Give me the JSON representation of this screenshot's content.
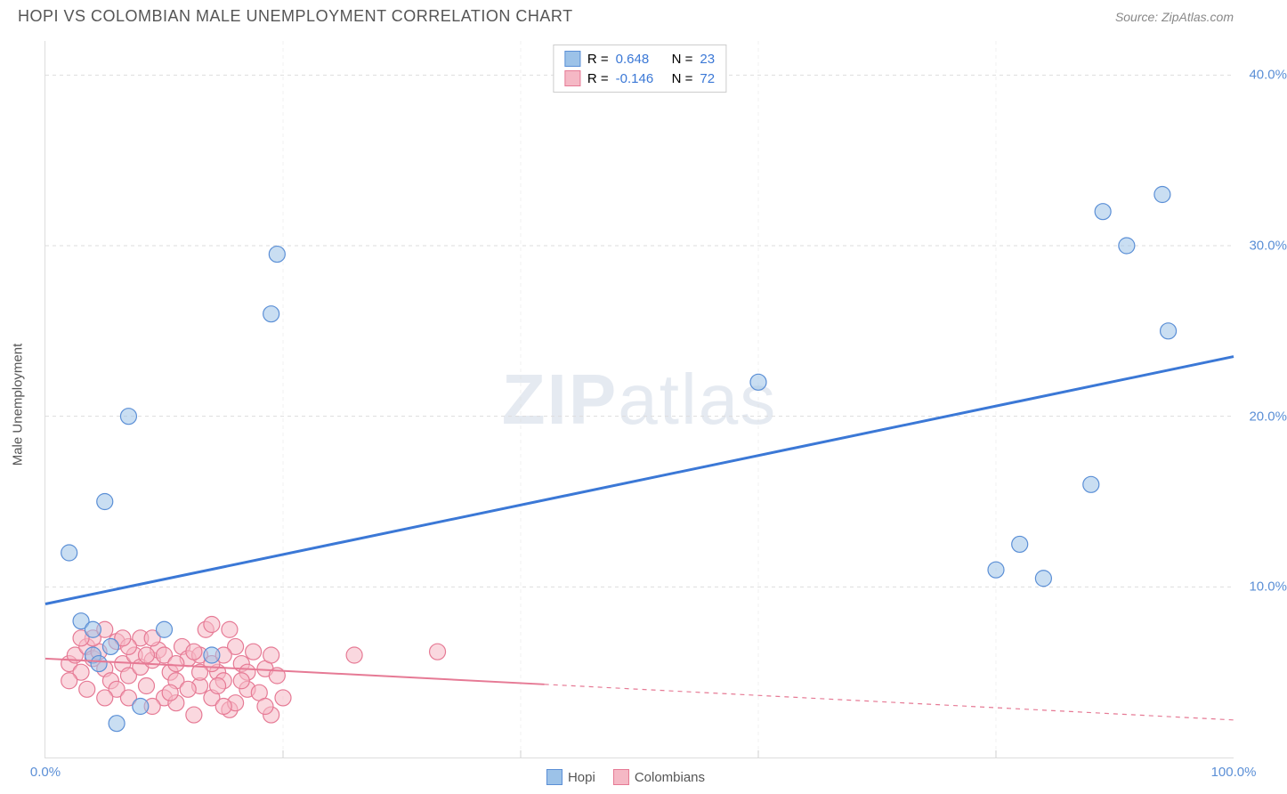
{
  "title": "HOPI VS COLOMBIAN MALE UNEMPLOYMENT CORRELATION CHART",
  "source": "Source: ZipAtlas.com",
  "watermark_primary": "ZIP",
  "watermark_secondary": "atlas",
  "y_axis_title": "Male Unemployment",
  "chart": {
    "type": "scatter",
    "xlim": [
      0,
      100
    ],
    "ylim": [
      0,
      42
    ],
    "x_ticks": [
      0,
      100
    ],
    "x_tick_labels": [
      "0.0%",
      "100.0%"
    ],
    "x_minor_grid": [
      20,
      40,
      60,
      80
    ],
    "y_ticks": [
      10,
      20,
      30,
      40
    ],
    "y_tick_labels": [
      "10.0%",
      "20.0%",
      "30.0%",
      "40.0%"
    ],
    "background_color": "#ffffff",
    "grid_color": "#dddddd",
    "marker_radius": 9,
    "marker_opacity": 0.55,
    "label_fontsize": 15,
    "title_fontsize": 18,
    "tick_color": "#5b8fd6"
  },
  "series": {
    "hopi": {
      "label": "Hopi",
      "color": "#9cc2e8",
      "stroke": "#5b8fd6",
      "line_color": "#3b78d6",
      "line_width": 3,
      "r_value": "0.648",
      "n_value": "23",
      "trend": {
        "x1": 0,
        "y1": 9.0,
        "x2": 100,
        "y2": 23.5,
        "dash": false
      },
      "points": [
        [
          2,
          12
        ],
        [
          3,
          8
        ],
        [
          4,
          7.5
        ],
        [
          5,
          15
        ],
        [
          6,
          2
        ],
        [
          7,
          20
        ],
        [
          8,
          3
        ],
        [
          10,
          7.5
        ],
        [
          14,
          6
        ],
        [
          19,
          26
        ],
        [
          19.5,
          29.5
        ],
        [
          80,
          11
        ],
        [
          82,
          12.5
        ],
        [
          84,
          10.5
        ],
        [
          88,
          16
        ],
        [
          89,
          32
        ],
        [
          91,
          30
        ],
        [
          94,
          33
        ],
        [
          94.5,
          25
        ],
        [
          60,
          22
        ],
        [
          4,
          6
        ],
        [
          4.5,
          5.5
        ],
        [
          5.5,
          6.5
        ]
      ]
    },
    "colombians": {
      "label": "Colombians",
      "color": "#f5b8c5",
      "stroke": "#e67a95",
      "line_color": "#e67a95",
      "line_width": 2,
      "r_value": "-0.146",
      "n_value": "72",
      "trend": {
        "x1": 0,
        "y1": 5.8,
        "x2": 100,
        "y2": 2.2,
        "dash_after": 42
      },
      "points": [
        [
          2,
          5.5
        ],
        [
          2.5,
          6
        ],
        [
          3,
          5
        ],
        [
          3.5,
          6.5
        ],
        [
          4,
          5.8
        ],
        [
          4.5,
          6.2
        ],
        [
          5,
          5.2
        ],
        [
          5.5,
          4.5
        ],
        [
          6,
          6.8
        ],
        [
          6.5,
          5.5
        ],
        [
          7,
          4.8
        ],
        [
          7.5,
          6
        ],
        [
          8,
          5.3
        ],
        [
          8.5,
          4.2
        ],
        [
          9,
          5.7
        ],
        [
          9.5,
          6.3
        ],
        [
          10,
          3.5
        ],
        [
          10.5,
          5
        ],
        [
          11,
          4.5
        ],
        [
          11.5,
          6.5
        ],
        [
          12,
          5.8
        ],
        [
          12.5,
          2.5
        ],
        [
          13,
          4.2
        ],
        [
          13.5,
          7.5
        ],
        [
          14,
          3.5
        ],
        [
          14.5,
          5
        ],
        [
          15,
          4.5
        ],
        [
          15.5,
          2.8
        ],
        [
          16,
          3.2
        ],
        [
          16.5,
          5.5
        ],
        [
          17,
          4
        ],
        [
          17.5,
          6.2
        ],
        [
          18,
          3.8
        ],
        [
          18.5,
          5.2
        ],
        [
          19,
          2.5
        ],
        [
          19.5,
          4.8
        ],
        [
          20,
          3.5
        ],
        [
          4,
          7
        ],
        [
          5,
          7.5
        ],
        [
          6,
          4
        ],
        [
          7,
          3.5
        ],
        [
          8,
          7
        ],
        [
          9,
          3
        ],
        [
          10,
          6
        ],
        [
          11,
          5.5
        ],
        [
          12,
          4
        ],
        [
          13,
          6
        ],
        [
          14,
          5.5
        ],
        [
          15,
          3
        ],
        [
          16,
          6.5
        ],
        [
          2,
          4.5
        ],
        [
          3,
          7
        ],
        [
          5,
          3.5
        ],
        [
          7,
          6.5
        ],
        [
          9,
          7
        ],
        [
          11,
          3.2
        ],
        [
          13,
          5
        ],
        [
          15,
          6
        ],
        [
          17,
          5
        ],
        [
          19,
          6
        ],
        [
          3.5,
          4
        ],
        [
          6.5,
          7
        ],
        [
          8.5,
          6
        ],
        [
          10.5,
          3.8
        ],
        [
          12.5,
          6.2
        ],
        [
          14.5,
          4.2
        ],
        [
          16.5,
          4.5
        ],
        [
          18.5,
          3
        ],
        [
          26,
          6
        ],
        [
          33,
          6.2
        ],
        [
          14,
          7.8
        ],
        [
          15.5,
          7.5
        ]
      ]
    }
  },
  "legend_top": {
    "r_label": "R =",
    "n_label": "N ="
  }
}
